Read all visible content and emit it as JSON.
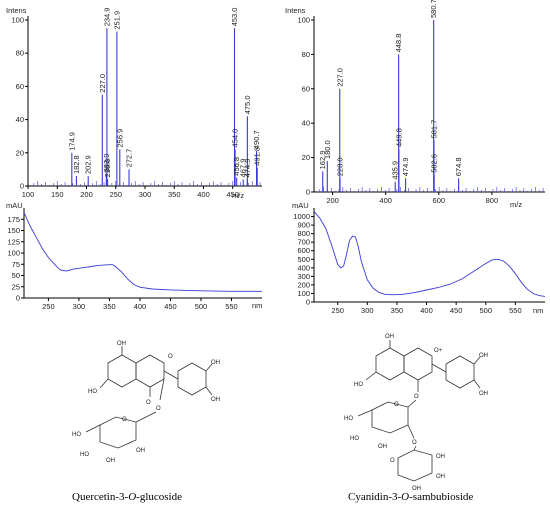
{
  "colors": {
    "trace": "#3a3ad6",
    "axis": "#000000"
  },
  "ms_units": {
    "intens": "Intens",
    "mz": "m/z"
  },
  "uv_units": {
    "mau": "mAU",
    "nm": "nm"
  },
  "compounds": {
    "left_name": "Quercetin-3-O-glucoside",
    "left_name_pre": "Quercetin-3-",
    "left_name_o": "O",
    "left_name_post": "-glucoside",
    "right_name_pre": "Cyanidin-3-",
    "right_name_o": "O",
    "right_name_post": "-sambubioside",
    "atoms": {
      "oh": "OH",
      "ho": "HO",
      "o": "O",
      "oplus": "O+"
    }
  },
  "chart_data": [
    {
      "type": "bar",
      "id": "ms-left",
      "xlabel": "m/z",
      "ylabel": "Intens",
      "xlim": [
        100,
        500
      ],
      "ylim": [
        0,
        100
      ],
      "xticks": [
        100,
        150,
        200,
        250,
        300,
        350,
        400,
        450
      ],
      "yticks": [
        0,
        20,
        40,
        60,
        80,
        100
      ],
      "peaks": [
        {
          "x": 174.9,
          "y": 20,
          "label": "174.9"
        },
        {
          "x": 182.8,
          "y": 6,
          "label": "182.8"
        },
        {
          "x": 202.9,
          "y": 6,
          "label": "202.9"
        },
        {
          "x": 227.0,
          "y": 55,
          "label": "227.0"
        },
        {
          "x": 233.9,
          "y": 7,
          "label": "233.9"
        },
        {
          "x": 234.9,
          "y": 95,
          "label": "234.9"
        },
        {
          "x": 236.0,
          "y": 4,
          "label": "236.0"
        },
        {
          "x": 251.9,
          "y": 93,
          "label": "251.9"
        },
        {
          "x": 256.9,
          "y": 22,
          "label": "256.9"
        },
        {
          "x": 272.7,
          "y": 10,
          "label": "272.7"
        },
        {
          "x": 453.0,
          "y": 95,
          "label": "453.0"
        },
        {
          "x": 454.0,
          "y": 22,
          "label": "454.0"
        },
        {
          "x": 456.8,
          "y": 5,
          "label": "456.8"
        },
        {
          "x": 467.9,
          "y": 4,
          "label": "467.9"
        },
        {
          "x": 475.0,
          "y": 42,
          "label": "475.0"
        },
        {
          "x": 490.7,
          "y": 21,
          "label": "490.7"
        },
        {
          "x": 491.8,
          "y": 11,
          "label": "491.8"
        },
        {
          "x": 474.9,
          "y": 4,
          "label": "474.9"
        }
      ]
    },
    {
      "type": "bar",
      "id": "ms-right",
      "xlabel": "m/z",
      "ylabel": "Intens",
      "xlim": [
        130,
        1000
      ],
      "ylim": [
        0,
        100
      ],
      "xticks": [
        200,
        400,
        600,
        800
      ],
      "yticks": [
        0,
        20,
        40,
        60,
        80,
        100
      ],
      "peaks": [
        {
          "x": 162.9,
          "y": 12,
          "label": "162.9"
        },
        {
          "x": 180.0,
          "y": 18,
          "label": "180.0"
        },
        {
          "x": 227.0,
          "y": 60,
          "label": "227.0"
        },
        {
          "x": 228.0,
          "y": 8,
          "label": "228.0"
        },
        {
          "x": 435.9,
          "y": 6,
          "label": "435.9"
        },
        {
          "x": 448.8,
          "y": 80,
          "label": "448.8"
        },
        {
          "x": 449.8,
          "y": 25,
          "label": "449.8"
        },
        {
          "x": 474.9,
          "y": 8,
          "label": "474.9"
        },
        {
          "x": 580.7,
          "y": 100,
          "label": "580.7"
        },
        {
          "x": 581.7,
          "y": 30,
          "label": "581.7"
        },
        {
          "x": 582.6,
          "y": 10,
          "label": "582.6"
        },
        {
          "x": 674.8,
          "y": 8,
          "label": "674.8"
        }
      ]
    },
    {
      "type": "line",
      "id": "uv-left",
      "xlabel": "nm",
      "ylabel": "mAU",
      "xlim": [
        210,
        600
      ],
      "ylim": [
        0,
        200
      ],
      "xticks": [
        250,
        300,
        350,
        400,
        450,
        500,
        550
      ],
      "yticks": [
        0,
        25,
        50,
        75,
        100,
        125,
        150,
        175
      ],
      "x": [
        210,
        220,
        230,
        240,
        250,
        260,
        265,
        270,
        280,
        290,
        300,
        310,
        320,
        330,
        340,
        350,
        355,
        360,
        370,
        380,
        390,
        400,
        420,
        450,
        500,
        550,
        600
      ],
      "y": [
        190,
        160,
        135,
        110,
        90,
        75,
        68,
        62,
        60,
        64,
        66,
        68,
        70,
        72,
        73,
        74,
        74,
        70,
        58,
        42,
        30,
        24,
        20,
        18,
        16,
        15,
        15
      ]
    },
    {
      "type": "line",
      "id": "uv-right",
      "xlabel": "nm",
      "ylabel": "mAU",
      "xlim": [
        210,
        600
      ],
      "ylim": [
        0,
        1100
      ],
      "xticks": [
        250,
        300,
        350,
        400,
        450,
        500,
        550
      ],
      "yticks": [
        0,
        100,
        200,
        300,
        400,
        500,
        600,
        700,
        800,
        900,
        1000
      ],
      "x": [
        210,
        220,
        230,
        240,
        250,
        255,
        260,
        265,
        270,
        275,
        280,
        285,
        290,
        300,
        310,
        320,
        330,
        340,
        350,
        360,
        380,
        400,
        420,
        440,
        460,
        480,
        500,
        510,
        520,
        530,
        540,
        550,
        560,
        570,
        580,
        590,
        600
      ],
      "y": [
        1060,
        980,
        860,
        660,
        440,
        400,
        420,
        560,
        720,
        770,
        760,
        640,
        470,
        260,
        160,
        110,
        90,
        85,
        85,
        90,
        110,
        140,
        170,
        210,
        270,
        360,
        450,
        490,
        500,
        480,
        420,
        330,
        230,
        150,
        100,
        75,
        65
      ]
    }
  ]
}
